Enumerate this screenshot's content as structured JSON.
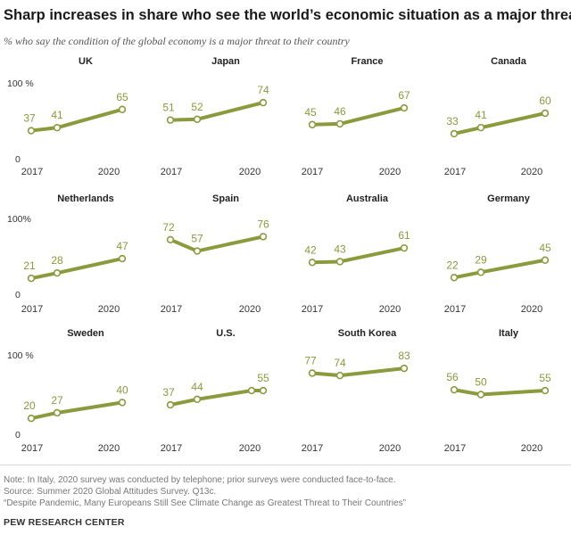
{
  "title": "Sharp increases in share who see the world’s economic situation as a major threat",
  "subtitle": "% who say the condition of the global economy is a major threat to their country",
  "chart_data": {
    "type": "line",
    "color": "#8a9a3c",
    "ylim": [
      0,
      100
    ],
    "y_ticks": [
      "100 %",
      "100%",
      "100 %"
    ],
    "y_zero_label": "0",
    "x_start_label": "2017",
    "x_end_label": "2020",
    "panels": [
      {
        "country": "UK",
        "values": [
          37,
          41,
          65
        ],
        "labels": [
          "37",
          "41",
          "65"
        ]
      },
      {
        "country": "Japan",
        "values": [
          51,
          52,
          74
        ],
        "labels": [
          "51",
          "52",
          "74"
        ]
      },
      {
        "country": "France",
        "values": [
          45,
          46,
          67
        ],
        "labels": [
          "45",
          "46",
          "67"
        ]
      },
      {
        "country": "Canada",
        "values": [
          33,
          41,
          60
        ],
        "labels": [
          "33",
          "41",
          "60"
        ]
      },
      {
        "country": "Netherlands",
        "values": [
          21,
          28,
          47
        ],
        "labels": [
          "21",
          "28",
          "47"
        ]
      },
      {
        "country": "Spain",
        "values": [
          72,
          57,
          76
        ],
        "labels": [
          "72",
          "57",
          "76"
        ]
      },
      {
        "country": "Australia",
        "values": [
          42,
          43,
          61
        ],
        "labels": [
          "42",
          "43",
          "61"
        ]
      },
      {
        "country": "Germany",
        "values": [
          22,
          29,
          45
        ],
        "labels": [
          "22",
          "29",
          "45"
        ]
      },
      {
        "country": "Sweden",
        "values": [
          20,
          27,
          40
        ],
        "labels": [
          "20",
          "27",
          "40"
        ]
      },
      {
        "country": "U.S.",
        "values": [
          37,
          44,
          55,
          55
        ],
        "labels": [
          "37",
          "44",
          "",
          "55"
        ]
      },
      {
        "country": "South Korea",
        "values": [
          77,
          74,
          83
        ],
        "labels": [
          "77",
          "74",
          "83"
        ]
      },
      {
        "country": "Italy",
        "values": [
          56,
          50,
          55
        ],
        "labels": [
          "56",
          "50",
          "55"
        ]
      }
    ]
  },
  "footer": {
    "note": "Note: In Italy, 2020 survey was conducted by telephone; prior surveys were conducted face-to-face.",
    "source": "Source: Summer 2020 Global Attitudes Survey. Q13c.",
    "report": "“Despite Pandemic, Many Europeans Still See Climate Change as Greatest Threat to Their Countries”",
    "brand": "PEW RESEARCH CENTER"
  }
}
